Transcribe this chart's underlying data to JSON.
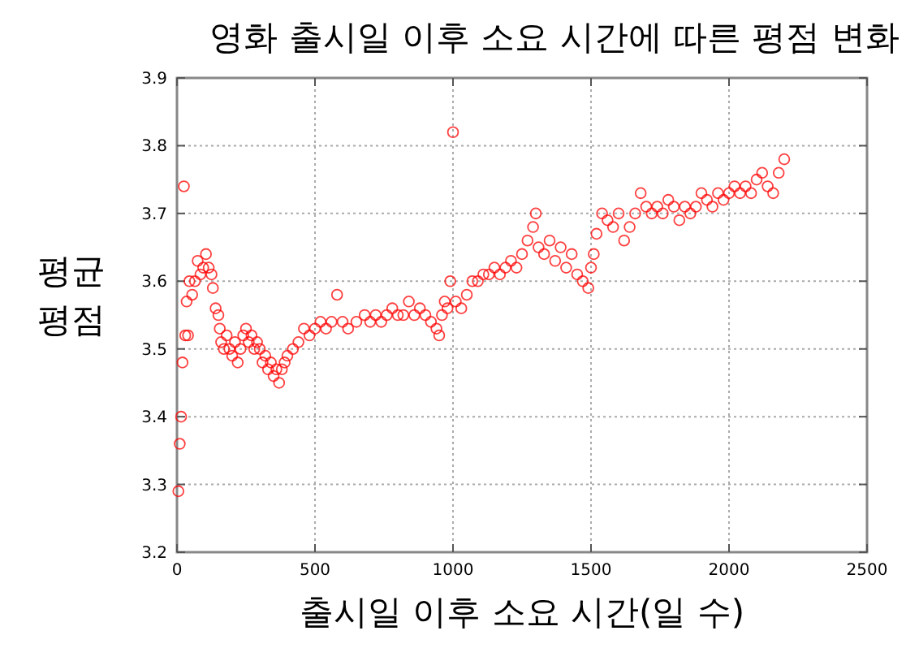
{
  "chart_data": {
    "type": "scatter",
    "title": "영화 출시일 이후 소요 시간에 따른 평점 변화",
    "xlabel": "출시일 이후 소요 시간(일 수)",
    "ylabel": "평균\n평점",
    "xlim": [
      0,
      2500
    ],
    "ylim": [
      3.2,
      3.9
    ],
    "xticks": [
      0,
      500,
      1000,
      1500,
      2000,
      2500
    ],
    "yticks": [
      3.2,
      3.3,
      3.4,
      3.5,
      3.6,
      3.7,
      3.8,
      3.9
    ],
    "grid": true,
    "marker": "circle",
    "series": [
      {
        "color": "#ff0000",
        "x": [
          5,
          10,
          15,
          20,
          25,
          30,
          35,
          40,
          45,
          55,
          65,
          75,
          85,
          95,
          105,
          115,
          125,
          130,
          140,
          150,
          155,
          160,
          170,
          180,
          190,
          200,
          210,
          220,
          230,
          240,
          250,
          260,
          270,
          280,
          290,
          300,
          310,
          320,
          330,
          340,
          350,
          360,
          370,
          380,
          390,
          400,
          420,
          440,
          460,
          480,
          500,
          520,
          540,
          560,
          580,
          600,
          620,
          650,
          680,
          700,
          720,
          740,
          760,
          780,
          800,
          820,
          840,
          860,
          880,
          900,
          920,
          940,
          950,
          960,
          970,
          980,
          990,
          1000,
          1010,
          1030,
          1050,
          1070,
          1090,
          1110,
          1130,
          1150,
          1170,
          1190,
          1210,
          1230,
          1250,
          1270,
          1290,
          1300,
          1310,
          1330,
          1350,
          1370,
          1390,
          1410,
          1430,
          1450,
          1470,
          1490,
          1500,
          1510,
          1520,
          1540,
          1560,
          1580,
          1600,
          1620,
          1640,
          1660,
          1680,
          1700,
          1720,
          1740,
          1760,
          1780,
          1800,
          1820,
          1840,
          1860,
          1880,
          1900,
          1920,
          1940,
          1960,
          1980,
          2000,
          2020,
          2040,
          2060,
          2080,
          2100,
          2120,
          2140,
          2160,
          2180,
          2200
        ],
        "values": [
          3.29,
          3.36,
          3.4,
          3.48,
          3.74,
          3.52,
          3.57,
          3.52,
          3.6,
          3.58,
          3.6,
          3.63,
          3.61,
          3.62,
          3.64,
          3.62,
          3.61,
          3.59,
          3.56,
          3.55,
          3.53,
          3.51,
          3.5,
          3.52,
          3.5,
          3.49,
          3.51,
          3.48,
          3.5,
          3.52,
          3.53,
          3.51,
          3.52,
          3.5,
          3.51,
          3.5,
          3.48,
          3.49,
          3.47,
          3.48,
          3.46,
          3.47,
          3.45,
          3.47,
          3.48,
          3.49,
          3.5,
          3.51,
          3.53,
          3.52,
          3.53,
          3.54,
          3.53,
          3.54,
          3.58,
          3.54,
          3.53,
          3.54,
          3.55,
          3.54,
          3.55,
          3.54,
          3.55,
          3.56,
          3.55,
          3.55,
          3.57,
          3.55,
          3.56,
          3.55,
          3.54,
          3.53,
          3.52,
          3.55,
          3.57,
          3.56,
          3.6,
          3.82,
          3.57,
          3.56,
          3.58,
          3.6,
          3.6,
          3.61,
          3.61,
          3.62,
          3.61,
          3.62,
          3.63,
          3.62,
          3.64,
          3.66,
          3.68,
          3.7,
          3.65,
          3.64,
          3.66,
          3.63,
          3.65,
          3.62,
          3.64,
          3.61,
          3.6,
          3.59,
          3.62,
          3.64,
          3.67,
          3.7,
          3.69,
          3.68,
          3.7,
          3.66,
          3.68,
          3.7,
          3.73,
          3.71,
          3.7,
          3.71,
          3.7,
          3.72,
          3.71,
          3.69,
          3.71,
          3.7,
          3.71,
          3.73,
          3.72,
          3.71,
          3.73,
          3.72,
          3.73,
          3.74,
          3.73,
          3.74,
          3.73,
          3.75,
          3.76,
          3.74,
          3.73,
          3.76,
          3.78
        ]
      }
    ]
  }
}
